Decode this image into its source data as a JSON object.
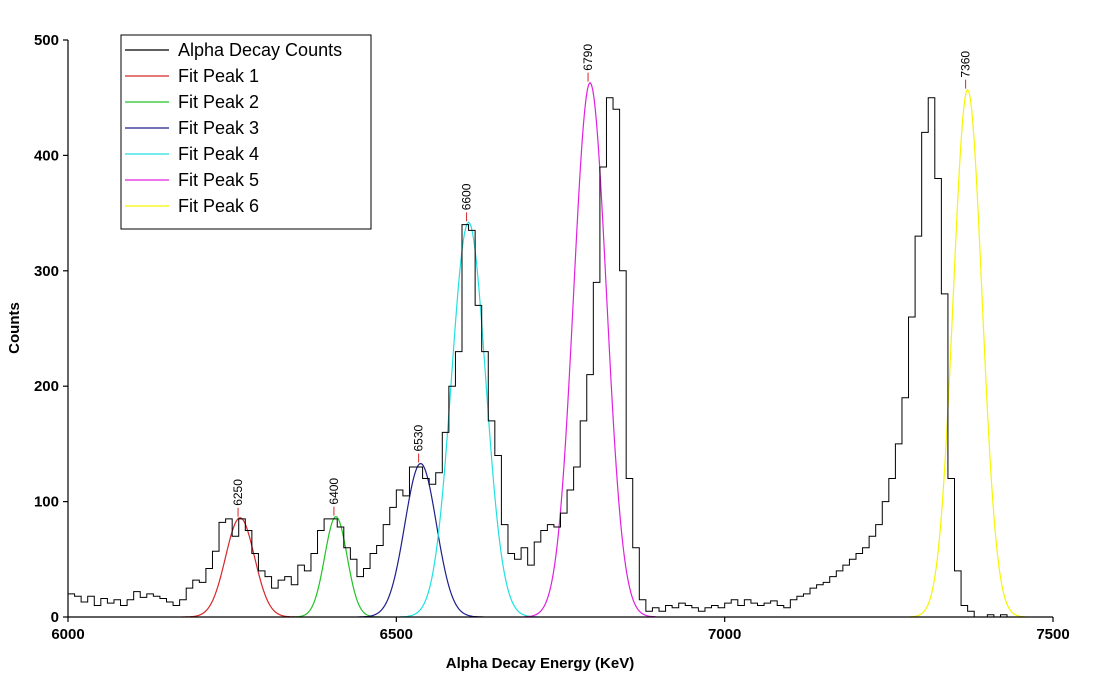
{
  "chart_data": {
    "type": "line",
    "title": "",
    "xlabel": "Alpha Decay Energy (KeV)",
    "ylabel": "Counts",
    "xlim": [
      6000,
      7500
    ],
    "ylim": [
      0,
      500
    ],
    "xticks": [
      6000,
      6500,
      7000,
      7500
    ],
    "yticks": [
      0,
      100,
      200,
      300,
      400,
      500
    ],
    "grid": false,
    "legend_position": "top-left",
    "histogram": {
      "name": "Alpha Decay Counts",
      "color": "#000000",
      "bin_width": 10,
      "x": [
        6000,
        6010,
        6020,
        6030,
        6040,
        6050,
        6060,
        6070,
        6080,
        6090,
        6100,
        6110,
        6120,
        6130,
        6140,
        6150,
        6160,
        6170,
        6180,
        6190,
        6200,
        6210,
        6220,
        6230,
        6240,
        6250,
        6260,
        6270,
        6280,
        6290,
        6300,
        6310,
        6320,
        6330,
        6340,
        6350,
        6360,
        6370,
        6380,
        6390,
        6400,
        6410,
        6420,
        6430,
        6440,
        6450,
        6460,
        6470,
        6480,
        6490,
        6500,
        6510,
        6520,
        6530,
        6540,
        6550,
        6560,
        6570,
        6580,
        6590,
        6600,
        6610,
        6620,
        6630,
        6640,
        6650,
        6660,
        6670,
        6680,
        6690,
        6700,
        6710,
        6720,
        6730,
        6740,
        6750,
        6760,
        6770,
        6780,
        6790,
        6800,
        6810,
        6820,
        6830,
        6840,
        6850,
        6860,
        6870,
        6880,
        6890,
        6900,
        6910,
        6920,
        6930,
        6940,
        6950,
        6960,
        6970,
        6980,
        6990,
        7000,
        7010,
        7020,
        7030,
        7040,
        7050,
        7060,
        7070,
        7080,
        7090,
        7100,
        7110,
        7120,
        7130,
        7140,
        7150,
        7160,
        7170,
        7180,
        7190,
        7200,
        7210,
        7220,
        7230,
        7240,
        7250,
        7260,
        7270,
        7280,
        7290,
        7300,
        7310,
        7320,
        7330,
        7340,
        7350,
        7360,
        7370,
        7380,
        7390,
        7400,
        7410,
        7420,
        7430,
        7440,
        7450,
        7460,
        7470,
        7480,
        7490
      ],
      "y": [
        20,
        18,
        13,
        18,
        10,
        16,
        12,
        15,
        10,
        15,
        22,
        17,
        20,
        18,
        16,
        13,
        10,
        15,
        25,
        32,
        30,
        42,
        57,
        82,
        85,
        70,
        85,
        75,
        55,
        40,
        35,
        25,
        32,
        35,
        28,
        45,
        40,
        55,
        75,
        85,
        85,
        78,
        60,
        50,
        35,
        42,
        55,
        62,
        80,
        95,
        110,
        105,
        130,
        130,
        120,
        115,
        125,
        160,
        200,
        230,
        340,
        335,
        270,
        230,
        170,
        140,
        80,
        55,
        50,
        60,
        45,
        65,
        75,
        80,
        78,
        90,
        110,
        130,
        170,
        210,
        290,
        390,
        450,
        440,
        300,
        120,
        60,
        15,
        5,
        8,
        5,
        10,
        8,
        12,
        10,
        8,
        5,
        8,
        10,
        8,
        12,
        15,
        10,
        15,
        12,
        10,
        12,
        14,
        10,
        8,
        15,
        18,
        20,
        25,
        28,
        30,
        35,
        40,
        45,
        50,
        55,
        60,
        70,
        80,
        100,
        120,
        150,
        190,
        260,
        330,
        420,
        450,
        380,
        280,
        120,
        40,
        10,
        5,
        0,
        0,
        2,
        0,
        2,
        0,
        0,
        0,
        0,
        0,
        0,
        0
      ]
    },
    "peaks": [
      {
        "name": "Fit Peak 1",
        "color": "#d62728",
        "center": 6262,
        "amplitude": 86,
        "sigma": 22,
        "label": "6250"
      },
      {
        "name": "Fit Peak 2",
        "color": "#22c322",
        "center": 6408,
        "amplitude": 87,
        "sigma": 17,
        "label": "6400"
      },
      {
        "name": "Fit Peak 3",
        "color": "#1f1f8c",
        "center": 6537,
        "amplitude": 133,
        "sigma": 24,
        "label": "6530"
      },
      {
        "name": "Fit Peak 4",
        "color": "#22e0e0",
        "center": 6610,
        "amplitude": 342,
        "sigma": 26,
        "label": "6600"
      },
      {
        "name": "Fit Peak 5",
        "color": "#e020e0",
        "center": 6795,
        "amplitude": 463,
        "sigma": 25,
        "label": "6790"
      },
      {
        "name": "Fit Peak 6",
        "color": "#f5f500",
        "center": 7370,
        "amplitude": 457,
        "sigma": 22,
        "label": "7360"
      }
    ]
  }
}
